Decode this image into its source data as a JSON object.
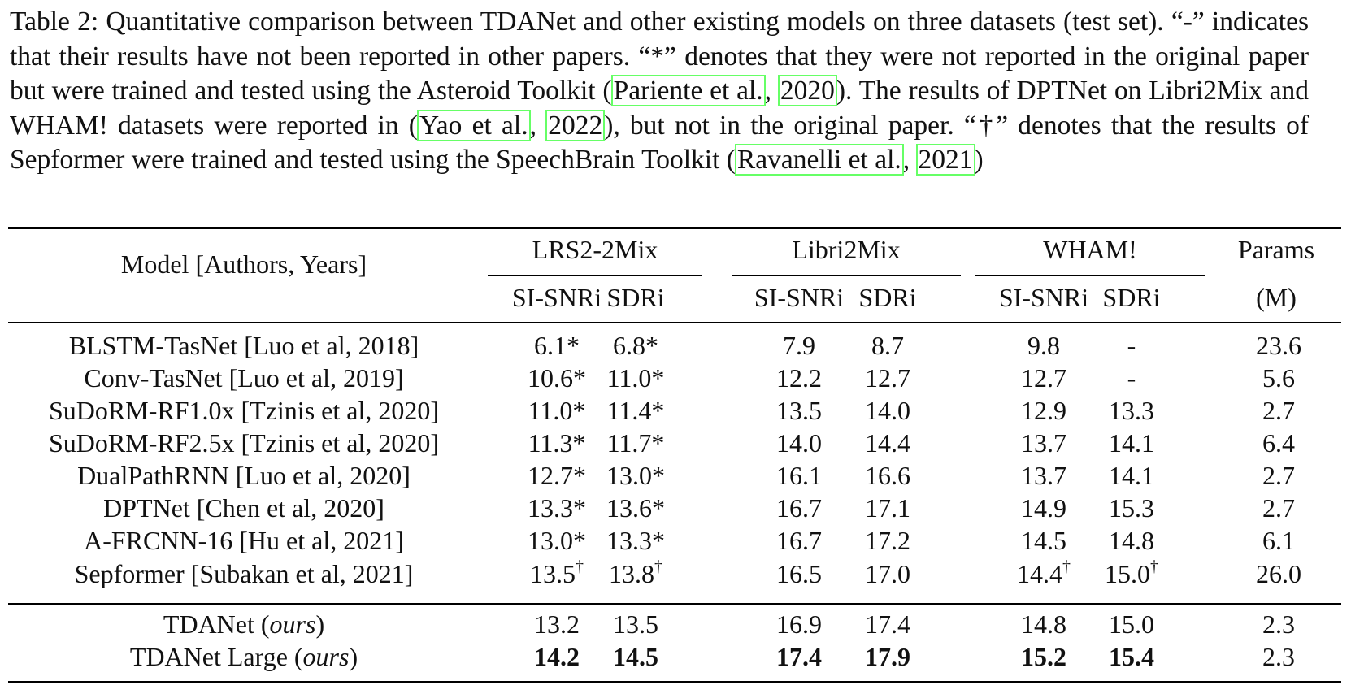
{
  "caption": {
    "part1": "Table 2: Quantitative comparison between TDANet and other existing models on three datasets (test set). “-” indicates that their results have not been reported in other papers. “*” denotes that they were not reported in the original paper but were trained and tested using the Asteroid Toolkit (",
    "cite1_author": "Pariente et al.",
    "sep1": ", ",
    "cite1_year": "2020",
    "part2": "). The results of DPTNet on Libri2Mix and WHAM! datasets were reported in (",
    "cite2_author": "Yao et al.",
    "sep2": ", ",
    "cite2_year": "2022",
    "part3": "), but not in the original paper. “†” denotes that the results of Sepformer were trained and tested using the SpeechBrain Toolkit (",
    "cite3_author": "Ravanelli et al.",
    "sep3": ", ",
    "cite3_year": "2021",
    "part4": ")"
  },
  "table": {
    "model_header": "Model [Authors, Years]",
    "groups": [
      "LRS2-2Mix",
      "Libri2Mix",
      "WHAM!"
    ],
    "params_header_top": "Params",
    "params_header_bottom": "(M)",
    "subheaders": [
      "SI-SNRi",
      "SDRi",
      "SI-SNRi",
      "SDRi",
      "SI-SNRi",
      "SDRi"
    ],
    "rows": [
      {
        "model": "BLSTM-TasNet [Luo et al, 2018]",
        "cells": [
          "6.1*",
          "6.8*",
          "7.9",
          "8.7",
          "9.8",
          "-",
          "23.6"
        ]
      },
      {
        "model": "Conv-TasNet [Luo et al, 2019]",
        "cells": [
          "10.6*",
          "11.0*",
          "12.2",
          "12.7",
          "12.7",
          "-",
          "5.6"
        ]
      },
      {
        "model": "SuDoRM-RF1.0x [Tzinis et al, 2020]",
        "cells": [
          "11.0*",
          "11.4*",
          "13.5",
          "14.0",
          "12.9",
          "13.3",
          "2.7"
        ]
      },
      {
        "model": "SuDoRM-RF2.5x [Tzinis et al, 2020]",
        "cells": [
          "11.3*",
          "11.7*",
          "14.0",
          "14.4",
          "13.7",
          "14.1",
          "6.4"
        ]
      },
      {
        "model": "DualPathRNN [Luo et al, 2020]",
        "cells": [
          "12.7*",
          "13.0*",
          "16.1",
          "16.6",
          "13.7",
          "14.1",
          "2.7"
        ]
      },
      {
        "model": "DPTNet [Chen et al, 2020]",
        "cells": [
          "13.3*",
          "13.6*",
          "16.7",
          "17.1",
          "14.9",
          "15.3",
          "2.7"
        ]
      },
      {
        "model": "A-FRCNN-16 [Hu et al, 2021]",
        "cells": [
          "13.0*",
          "13.3*",
          "16.7",
          "17.2",
          "14.5",
          "14.8",
          "6.1"
        ]
      },
      {
        "model": "Sepformer [Subakan et al, 2021]",
        "cells": [
          "13.5",
          "13.8",
          "16.5",
          "17.0",
          "14.4",
          "15.0",
          "26.0"
        ],
        "dagger": "†"
      }
    ],
    "ours": [
      {
        "model_name": "TDANet",
        "model_tag": "ours",
        "cells": [
          "13.2",
          "13.5",
          "16.9",
          "17.4",
          "14.8",
          "15.0",
          "2.3"
        ]
      },
      {
        "model_name": "TDANet Large",
        "model_tag": "ours",
        "cells": [
          "14.2",
          "14.5",
          "17.4",
          "17.9",
          "15.2",
          "15.4",
          "2.3"
        ]
      }
    ]
  }
}
